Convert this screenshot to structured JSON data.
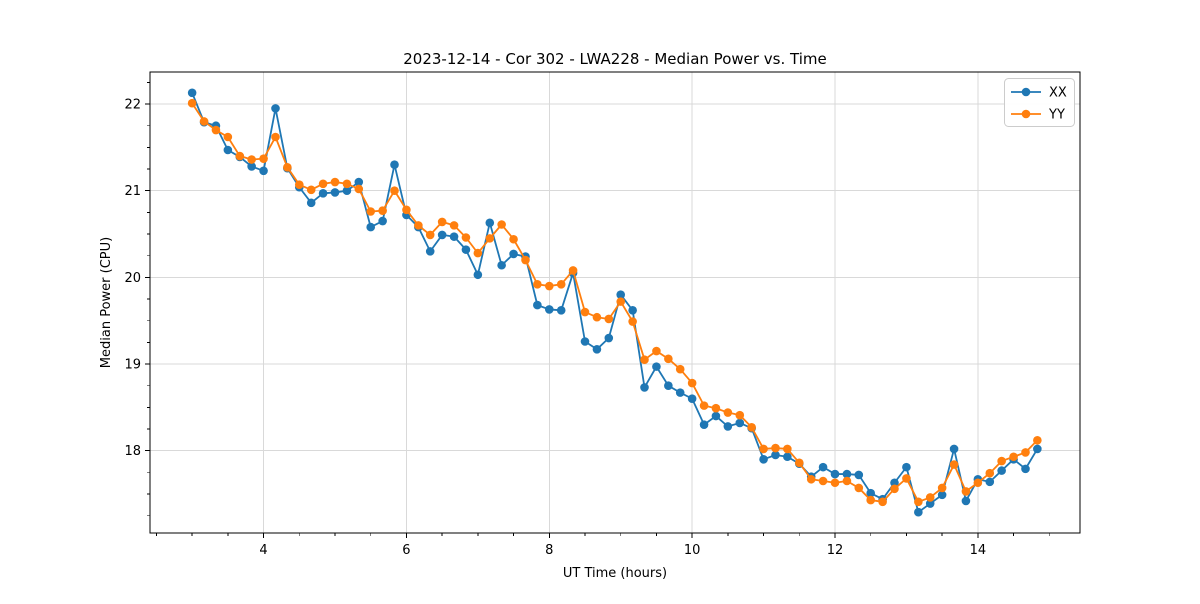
{
  "chart_data": {
    "type": "line",
    "title": "2023-12-14 - Cor 302 - LWA228 - Median Power vs. Time",
    "xlabel": "UT Time (hours)",
    "ylabel": "Median Power (CPU)",
    "xlim": [
      2.41,
      15.43
    ],
    "ylim": [
      17.05,
      22.37
    ],
    "xticks": [
      4,
      6,
      8,
      10,
      12,
      14
    ],
    "yticks": [
      18,
      19,
      20,
      21,
      22
    ],
    "x_minor_step": 0.5,
    "y_minor_step": 0.25,
    "grid": true,
    "grid_color": "#d9d9d9",
    "legend_position": "upper right",
    "x": [
      3.0,
      3.167,
      3.333,
      3.5,
      3.667,
      3.833,
      4.0,
      4.167,
      4.333,
      4.5,
      4.667,
      4.833,
      5.0,
      5.167,
      5.333,
      5.5,
      5.667,
      5.833,
      6.0,
      6.167,
      6.333,
      6.5,
      6.667,
      6.833,
      7.0,
      7.167,
      7.333,
      7.5,
      7.667,
      7.833,
      8.0,
      8.167,
      8.333,
      8.5,
      8.667,
      8.833,
      9.0,
      9.167,
      9.333,
      9.5,
      9.667,
      9.833,
      10.0,
      10.167,
      10.333,
      10.5,
      10.667,
      10.833,
      11.0,
      11.167,
      11.333,
      11.5,
      11.667,
      11.833,
      12.0,
      12.167,
      12.333,
      12.5,
      12.667,
      12.833,
      13.0,
      13.167,
      13.333,
      13.5,
      13.667,
      13.833,
      14.0,
      14.167,
      14.333,
      14.5,
      14.667,
      14.833
    ],
    "series": [
      {
        "name": "XX",
        "color": "#1f77b4",
        "values": [
          22.13,
          21.79,
          21.75,
          21.47,
          21.39,
          21.28,
          21.23,
          21.95,
          21.26,
          21.04,
          20.86,
          20.97,
          20.98,
          21.0,
          21.1,
          20.58,
          20.65,
          21.3,
          20.72,
          20.58,
          20.3,
          20.49,
          20.47,
          20.32,
          20.03,
          20.63,
          20.14,
          20.27,
          20.24,
          19.68,
          19.63,
          19.62,
          20.05,
          19.26,
          19.17,
          19.3,
          19.8,
          19.62,
          18.73,
          18.97,
          18.75,
          18.67,
          18.6,
          18.3,
          18.4,
          18.28,
          18.32,
          18.26,
          17.9,
          17.95,
          17.93,
          17.85,
          17.7,
          17.81,
          17.73,
          17.73,
          17.72,
          17.51,
          17.44,
          17.63,
          17.81,
          17.29,
          17.39,
          17.49,
          18.02,
          17.42,
          17.67,
          17.64,
          17.77,
          17.9,
          17.79,
          18.02
        ]
      },
      {
        "name": "YY",
        "color": "#ff7f0e",
        "values": [
          22.01,
          21.8,
          21.7,
          21.62,
          21.4,
          21.36,
          21.37,
          21.62,
          21.27,
          21.07,
          21.01,
          21.08,
          21.1,
          21.08,
          21.02,
          20.76,
          20.77,
          21.0,
          20.78,
          20.6,
          20.49,
          20.64,
          20.6,
          20.46,
          20.28,
          20.45,
          20.61,
          20.44,
          20.2,
          19.92,
          19.9,
          19.92,
          20.08,
          19.6,
          19.54,
          19.52,
          19.72,
          19.49,
          19.05,
          19.15,
          19.06,
          18.94,
          18.78,
          18.52,
          18.49,
          18.44,
          18.41,
          18.27,
          18.02,
          18.03,
          18.02,
          17.86,
          17.67,
          17.65,
          17.63,
          17.65,
          17.57,
          17.43,
          17.41,
          17.56,
          17.68,
          17.41,
          17.46,
          17.57,
          17.84,
          17.53,
          17.63,
          17.74,
          17.88,
          17.93,
          17.98,
          18.12
        ]
      }
    ]
  },
  "legend": {
    "entries": [
      "XX",
      "YY"
    ]
  }
}
